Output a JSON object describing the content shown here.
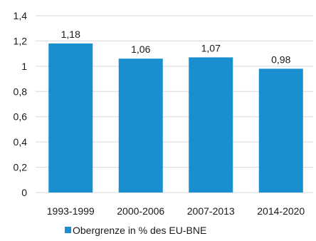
{
  "chart_data": {
    "type": "bar",
    "categories": [
      "1993-1999",
      "2000-2006",
      "2007-2013",
      "2014-2020"
    ],
    "series": [
      {
        "name": "Obergrenze in % des EU-BNE",
        "values": [
          1.18,
          1.06,
          1.07,
          0.98
        ],
        "color": "#1a8fcf"
      }
    ],
    "data_labels": [
      "1,18",
      "1,06",
      "1,07",
      "0,98"
    ],
    "y_ticks": [
      0,
      0.2,
      0.4,
      0.6,
      0.8,
      1,
      1.2,
      1.4
    ],
    "y_tick_labels": [
      "0",
      "0,2",
      "0,4",
      "0,6",
      "0,8",
      "1",
      "1,2",
      "1,4"
    ],
    "ylim": [
      0,
      1.4
    ],
    "grid": true,
    "legend_position": "bottom"
  }
}
